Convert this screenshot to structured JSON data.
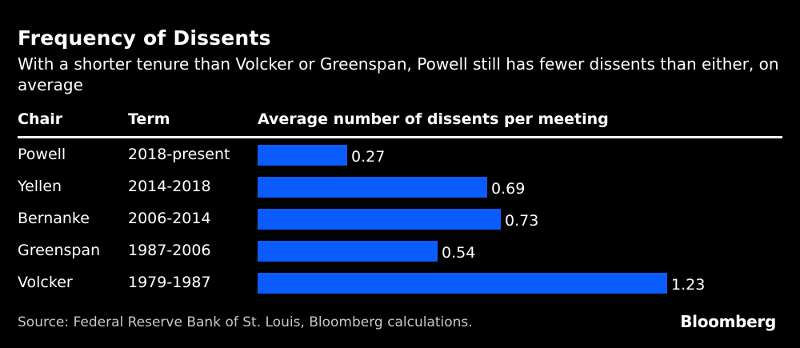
{
  "title": "Frequency of Dissents",
  "subtitle": "With a shorter tenure than Volcker or Greenspan, Powell still has fewer dissents than either, on average",
  "headers": {
    "chair": "Chair",
    "term": "Term",
    "metric": "Average number of dissents per meeting"
  },
  "source": "Source: Federal Reserve Bank of St. Louis, Bloomberg calculations.",
  "brand": "Bloomberg",
  "colors": {
    "background": "#000000",
    "bar": "#0a5cff",
    "text": "#ffffff"
  },
  "chart_data": {
    "type": "bar",
    "orientation": "horizontal",
    "categories": [
      "Powell",
      "Yellen",
      "Bernanke",
      "Greenspan",
      "Volcker"
    ],
    "terms": [
      "2018-present",
      "2014-2018",
      "2006-2014",
      "1987-2006",
      "1979-1987"
    ],
    "values": [
      0.27,
      0.69,
      0.73,
      0.54,
      1.23
    ],
    "value_labels": [
      "0.27",
      "0.69",
      "0.73",
      "0.54",
      "1.23"
    ],
    "xlim": [
      0,
      1.23
    ],
    "grid": false,
    "legend": "none"
  }
}
